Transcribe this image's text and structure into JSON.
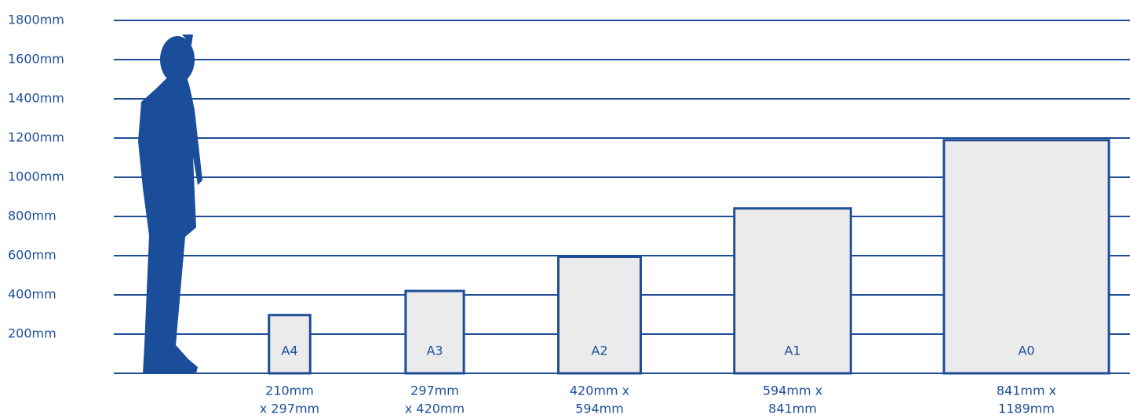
{
  "chart_data": {
    "type": "paper-sizes",
    "categories": [
      "A4",
      "A3",
      "A2",
      "A1",
      "A0"
    ],
    "values": [
      297,
      420,
      594,
      841,
      1189
    ],
    "widths": [
      210,
      297,
      420,
      594,
      841
    ],
    "size_labels": [
      [
        "210mm",
        "x 297mm"
      ],
      [
        "297mm",
        "x 420mm"
      ],
      [
        "420mm x",
        "594mm"
      ],
      [
        "594mm x",
        "841mm"
      ],
      [
        "841mm x",
        "1189mm"
      ]
    ],
    "color": "#ebebeb",
    "edge_color": "#1f4e96",
    "ylim": [
      0,
      1800
    ],
    "yticks": [
      {
        "value": 200,
        "label": "200mm"
      },
      {
        "value": 400,
        "label": "400mm"
      },
      {
        "value": 600,
        "label": "600mm"
      },
      {
        "value": 800,
        "label": "800mm"
      },
      {
        "value": 1000,
        "label": "1000mm"
      },
      {
        "value": 1200,
        "label": "1200mm"
      },
      {
        "value": 1400,
        "label": "1400mm"
      },
      {
        "value": 1600,
        "label": "1600mm"
      },
      {
        "value": 1800,
        "label": "1800mm"
      }
    ],
    "grid": true
  }
}
